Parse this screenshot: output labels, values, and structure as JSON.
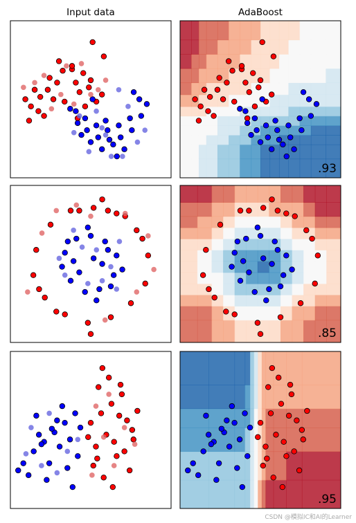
{
  "figure": {
    "columns": [
      "Input data",
      "AdaBoost"
    ],
    "watermark": "CSDN @模拟IC和AI的Learner"
  },
  "colors": {
    "train_class0": "#ff0000",
    "train_class1": "#0000ff",
    "test_class0": "#e06666",
    "test_class1": "#6666e0",
    "contour_scale": [
      "#2166ac",
      "#4393c3",
      "#92c5de",
      "#d1e5f0",
      "#f7f7f7",
      "#fddbc7",
      "#f4a582",
      "#d6604d",
      "#b2182b"
    ]
  },
  "chart_data": [
    {
      "type": "scatter",
      "dataset": "moons",
      "title": "Input data",
      "xlim": [
        -1.6,
        2.7
      ],
      "ylim": [
        -1.3,
        2.0
      ],
      "series": [
        {
          "name": "",
          "class": 0,
          "split": "train",
          "x": [
            -0.95,
            -0.55,
            -0.2,
            0.05,
            0.35,
            0.55,
            0.85,
            -1.05,
            -0.8,
            -0.6,
            -0.35,
            0.15,
            0.5,
            0.7,
            -1.1,
            -0.85,
            -0.45,
            0.25,
            -0.15,
            0.6,
            -0.3,
            0.9,
            0.05,
            -0.7,
            -1.2,
            0.4,
            0.2
          ],
          "y": [
            0.55,
            0.8,
            0.95,
            0.98,
            0.9,
            0.75,
            0.45,
            0.2,
            0.4,
            0.55,
            0.7,
            0.7,
            0.6,
            0.3,
            -0.1,
            0.1,
            0.35,
            0.5,
            0.3,
            1.55,
            1.15,
            1.25,
            1.05,
            0.0,
            0.35,
            0.2,
            -0.05
          ]
        },
        {
          "name": "",
          "class": 1,
          "split": "train",
          "x": [
            0.0,
            0.2,
            0.45,
            0.75,
            1.05,
            1.35,
            1.65,
            1.9,
            0.15,
            0.4,
            0.7,
            1.0,
            1.3,
            1.6,
            1.85,
            0.3,
            0.55,
            0.85,
            1.15,
            1.45,
            2.05,
            1.7,
            0.95,
            0.6,
            1.25
          ],
          "y": [
            0.15,
            -0.15,
            -0.3,
            -0.45,
            -0.5,
            -0.45,
            -0.3,
            0.0,
            0.1,
            -0.05,
            -0.2,
            -0.3,
            -0.2,
            -0.05,
            0.35,
            -0.4,
            -0.55,
            -0.7,
            -0.6,
            -0.7,
            0.25,
            0.5,
            -0.1,
            0.35,
            -0.85
          ]
        },
        {
          "name": "",
          "class": 0,
          "split": "test",
          "x": [
            -0.7,
            -0.1,
            0.3,
            0.75,
            -0.95,
            -0.5,
            0.1,
            0.55,
            -0.25,
            -1.25,
            0.95
          ],
          "y": [
            0.85,
            1.05,
            1.1,
            0.55,
            0.7,
            0.15,
            0.25,
            0.45,
            0.45,
            0.6,
            0.75
          ]
        },
        {
          "name": "",
          "class": 1,
          "split": "test",
          "x": [
            0.1,
            0.5,
            0.95,
            1.4,
            1.8,
            0.25,
            0.7,
            1.1,
            1.55,
            2.0,
            0.85,
            1.3
          ],
          "y": [
            -0.35,
            -0.75,
            -0.4,
            -0.85,
            -0.55,
            0.0,
            0.1,
            -0.85,
            0.2,
            -0.3,
            -0.25,
            0.55
          ]
        }
      ]
    },
    {
      "type": "heatmap",
      "dataset": "moons",
      "title": "AdaBoost",
      "score": ".93",
      "xlim": [
        -1.6,
        2.7
      ],
      "ylim": [
        -1.3,
        2.0
      ],
      "x_edges": [
        -1.6,
        -1.3,
        -1.1,
        -0.9,
        -0.6,
        -0.3,
        0.0,
        0.3,
        0.55,
        0.8,
        1.05,
        1.3,
        1.6,
        1.9,
        2.3,
        2.7
      ],
      "y_edges": [
        -1.3,
        -0.9,
        -0.6,
        -0.4,
        -0.2,
        0.0,
        0.2,
        0.45,
        0.7,
        1.0,
        1.3,
        1.6,
        2.0
      ],
      "z": [
        [
          4,
          4,
          3,
          3,
          2,
          2,
          1,
          1,
          0,
          0,
          0,
          0,
          0,
          0,
          0
        ],
        [
          4,
          4,
          3,
          3,
          2,
          2,
          1,
          1,
          0,
          0,
          0,
          0,
          0,
          0,
          0
        ],
        [
          4,
          4,
          4,
          3,
          3,
          2,
          2,
          1,
          1,
          1,
          0,
          0,
          0,
          0,
          0
        ],
        [
          4,
          4,
          4,
          4,
          3,
          3,
          2,
          2,
          1,
          1,
          1,
          1,
          1,
          0,
          0
        ],
        [
          4,
          4,
          4,
          4,
          3,
          3,
          3,
          2,
          2,
          2,
          2,
          2,
          1,
          1,
          1
        ],
        [
          5,
          5,
          5,
          4,
          4,
          4,
          3,
          3,
          3,
          3,
          3,
          2,
          2,
          2,
          2
        ],
        [
          6,
          6,
          5,
          5,
          5,
          4,
          4,
          4,
          4,
          3,
          3,
          3,
          3,
          3,
          3
        ],
        [
          7,
          6,
          6,
          5,
          5,
          5,
          5,
          4,
          4,
          4,
          4,
          3,
          3,
          3,
          3
        ],
        [
          7,
          7,
          6,
          6,
          6,
          5,
          5,
          5,
          5,
          4,
          4,
          4,
          4,
          4,
          3
        ],
        [
          8,
          7,
          7,
          6,
          6,
          6,
          5,
          5,
          5,
          5,
          4,
          4,
          4,
          4,
          4
        ],
        [
          8,
          8,
          7,
          7,
          6,
          6,
          6,
          5,
          5,
          5,
          5,
          4,
          4,
          4,
          4
        ],
        [
          8,
          8,
          7,
          7,
          7,
          6,
          6,
          6,
          5,
          5,
          5,
          5,
          4,
          4,
          4
        ]
      ],
      "series_ref": 0
    },
    {
      "type": "scatter",
      "dataset": "circles",
      "title": "",
      "xlim": [
        -1.4,
        1.4
      ],
      "ylim": [
        -1.4,
        1.4
      ],
      "series": [
        {
          "name": "",
          "class": 0,
          "split": "train",
          "x": [
            -0.95,
            -0.7,
            -0.35,
            0.05,
            0.45,
            0.8,
            1.0,
            0.95,
            0.7,
            0.35,
            -0.05,
            -0.45,
            -0.8,
            -1.0,
            0.2,
            -0.2,
            0.6,
            -0.6,
            0.9,
            -0.9,
            0.0,
            0.3
          ],
          "y": [
            0.25,
            0.7,
            0.95,
            1.0,
            0.9,
            0.6,
            0.15,
            -0.35,
            -0.7,
            -0.95,
            -1.05,
            -0.9,
            -0.6,
            -0.2,
            1.15,
            0.95,
            0.85,
            -0.85,
            0.45,
            -0.45,
            -1.25,
            0.95
          ]
        },
        {
          "name": "",
          "class": 1,
          "split": "train",
          "x": [
            -0.45,
            -0.25,
            0.0,
            0.25,
            0.45,
            0.4,
            0.15,
            -0.1,
            -0.35,
            -0.5,
            0.05,
            -0.2,
            0.3,
            -0.4,
            0.55,
            0.1,
            -0.05,
            0.35,
            -0.3,
            0.2
          ],
          "y": [
            0.2,
            0.45,
            0.5,
            0.4,
            0.15,
            -0.2,
            -0.45,
            -0.5,
            -0.3,
            -0.05,
            0.1,
            -0.15,
            0.25,
            0.4,
            -0.1,
            -0.65,
            0.65,
            -0.4,
            0.05,
            0.0
          ]
        },
        {
          "name": "",
          "class": 0,
          "split": "test",
          "x": [
            -1.1,
            -0.6,
            0.6,
            1.1,
            0.25,
            -0.25,
            0.8,
            -0.85,
            0.0,
            1.0
          ],
          "y": [
            -0.5,
            0.95,
            0.9,
            -0.1,
            -1.0,
            1.05,
            -0.5,
            0.55,
            0.85,
            0.5
          ]
        },
        {
          "name": "",
          "class": 1,
          "split": "test",
          "x": [
            -0.15,
            0.35,
            -0.45,
            0.1,
            0.5,
            -0.3,
            0.2,
            -0.05,
            0.45,
            -0.55
          ],
          "y": [
            0.3,
            -0.05,
            -0.2,
            0.25,
            0.4,
            0.6,
            -0.3,
            -0.35,
            -0.45,
            0.1
          ]
        }
      ]
    },
    {
      "type": "heatmap",
      "dataset": "circles",
      "title": "",
      "score": ".85",
      "xlim": [
        -1.4,
        1.4
      ],
      "ylim": [
        -1.4,
        1.4
      ],
      "x_edges": [
        -1.4,
        -1.1,
        -0.85,
        -0.65,
        -0.45,
        -0.25,
        -0.05,
        0.15,
        0.35,
        0.55,
        0.75,
        0.95,
        1.15,
        1.4
      ],
      "y_edges": [
        -1.4,
        -1.0,
        -0.75,
        -0.55,
        -0.35,
        -0.15,
        0.05,
        0.25,
        0.45,
        0.65,
        0.85,
        1.1,
        1.4
      ],
      "z": [
        [
          7,
          7,
          6,
          6,
          5,
          5,
          5,
          5,
          6,
          6,
          7,
          7,
          7
        ],
        [
          7,
          7,
          6,
          5,
          4,
          4,
          4,
          4,
          5,
          6,
          6,
          7,
          7
        ],
        [
          6,
          6,
          5,
          4,
          3,
          3,
          3,
          3,
          4,
          5,
          5,
          6,
          6
        ],
        [
          5,
          5,
          4,
          3,
          2,
          2,
          2,
          2,
          3,
          4,
          5,
          5,
          5
        ],
        [
          5,
          4,
          4,
          3,
          2,
          1,
          1,
          1,
          2,
          3,
          4,
          4,
          5
        ],
        [
          5,
          4,
          3,
          2,
          1,
          1,
          0,
          1,
          2,
          3,
          4,
          4,
          5
        ],
        [
          5,
          4,
          3,
          2,
          1,
          1,
          1,
          1,
          2,
          3,
          4,
          4,
          5
        ],
        [
          5,
          5,
          4,
          3,
          2,
          2,
          2,
          2,
          3,
          4,
          4,
          5,
          5
        ],
        [
          6,
          6,
          5,
          4,
          3,
          3,
          3,
          3,
          4,
          5,
          5,
          6,
          6
        ],
        [
          7,
          6,
          6,
          5,
          4,
          4,
          4,
          4,
          5,
          6,
          6,
          7,
          7
        ],
        [
          7,
          7,
          6,
          6,
          5,
          5,
          5,
          6,
          6,
          6,
          7,
          8,
          8
        ],
        [
          8,
          8,
          7,
          7,
          6,
          6,
          6,
          6,
          7,
          7,
          8,
          8,
          8
        ]
      ],
      "series_ref": 2
    },
    {
      "type": "scatter",
      "dataset": "linearly separable",
      "title": "",
      "xlim": [
        -3.0,
        3.2
      ],
      "ylim": [
        -2.8,
        3.8
      ],
      "series": [
        {
          "name": "",
          "class": 0,
          "split": "train",
          "x": [
            0.1,
            0.5,
            0.9,
            1.3,
            1.7,
            0.3,
            0.7,
            1.1,
            1.5,
            1.9,
            0.2,
            0.6,
            1.0,
            1.4,
            0.4,
            0.8,
            1.2,
            1.6,
            0.0,
            0.35,
            0.95,
            1.75,
            0.55,
            1.25
          ],
          "y": [
            0.8,
            1.2,
            1.6,
            2.0,
            0.5,
            -0.2,
            0.3,
            -0.6,
            0.9,
            1.3,
            -1.0,
            -1.5,
            0.0,
            -0.4,
            2.3,
            2.7,
            1.1,
            -1.2,
            0.2,
            -0.7,
            -1.9,
            0.1,
            3.1,
            2.4
          ]
        },
        {
          "name": "",
          "class": 1,
          "split": "train",
          "x": [
            -2.5,
            -2.1,
            -1.7,
            -1.3,
            -0.9,
            -0.5,
            -2.3,
            -1.9,
            -1.5,
            -1.1,
            -0.7,
            -0.3,
            -2.0,
            -1.6,
            -1.2,
            -0.8,
            -0.4,
            -1.8,
            -1.0,
            -0.6,
            -2.7,
            -1.4
          ],
          "y": [
            -0.9,
            -0.4,
            0.0,
            0.4,
            0.8,
            1.2,
            -1.4,
            0.3,
            -0.9,
            -0.2,
            0.1,
            0.6,
            1.1,
            -1.6,
            0.9,
            -1.1,
            -0.6,
            -0.1,
            1.5,
            -1.9,
            -1.2,
            0.55
          ]
        },
        {
          "name": "",
          "class": 0,
          "split": "test",
          "x": [
            0.3,
            0.8,
            1.4,
            1.0,
            0.6,
            1.8,
            0.15
          ],
          "y": [
            1.5,
            2.0,
            0.6,
            -1.0,
            0.2,
            -0.1,
            -1.4
          ]
        },
        {
          "name": "",
          "class": 1,
          "split": "test",
          "x": [
            -2.2,
            -1.5,
            -0.8,
            -1.2,
            -0.4,
            -2.4,
            -1.8
          ],
          "y": [
            0.6,
            1.2,
            -0.4,
            -1.3,
            0.1,
            -0.5,
            -1.0
          ]
        }
      ]
    },
    {
      "type": "heatmap",
      "dataset": "linearly separable",
      "title": "",
      "score": ".95",
      "xlim": [
        -3.0,
        3.2
      ],
      "ylim": [
        -2.8,
        3.8
      ],
      "x_edges": [
        -3.0,
        -1.9,
        -0.9,
        -0.5,
        -0.3,
        -0.15,
        0.0,
        0.15,
        0.3,
        0.6,
        1.1,
        1.7,
        3.2
      ],
      "y_edges": [
        -2.8,
        -1.6,
        -0.4,
        0.6,
        1.4,
        2.4,
        3.8
      ],
      "z": [
        [
          2,
          2,
          2,
          2,
          3,
          4,
          6,
          7,
          8,
          8,
          8,
          8
        ],
        [
          2,
          2,
          2,
          2,
          3,
          4,
          5,
          6,
          7,
          7,
          8,
          8
        ],
        [
          1,
          1,
          1,
          2,
          3,
          4,
          5,
          6,
          7,
          7,
          7,
          7
        ],
        [
          1,
          1,
          1,
          1,
          2,
          4,
          5,
          6,
          7,
          7,
          7,
          7
        ],
        [
          0,
          0,
          0,
          1,
          2,
          3,
          5,
          6,
          6,
          6,
          6,
          6
        ],
        [
          0,
          0,
          0,
          0,
          2,
          3,
          5,
          6,
          6,
          6,
          6,
          6
        ]
      ],
      "series_ref": 4
    }
  ]
}
